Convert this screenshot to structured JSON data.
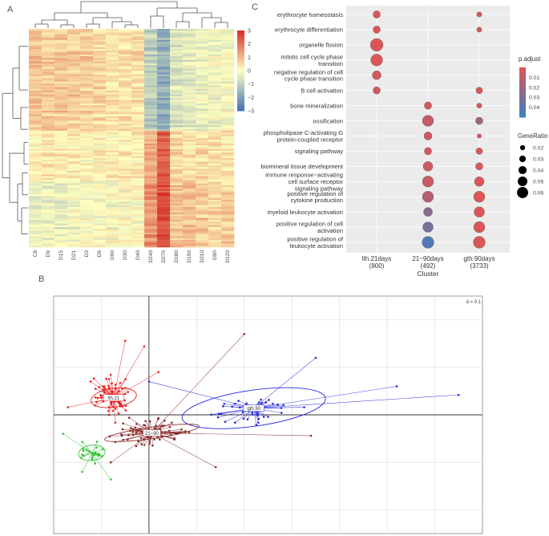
{
  "panels": {
    "a": "A",
    "b": "B",
    "c": "C"
  },
  "chart_data": [
    {
      "type": "heatmap",
      "panel": "A",
      "columns": [
        "C8",
        "D9",
        "D15",
        "D21",
        "D3",
        "D6",
        "D60",
        "D30",
        "D40",
        "D240",
        "D270",
        "D180",
        "D150",
        "D210",
        "D90",
        "D120"
      ],
      "colorbar": {
        "ticks": [
          3,
          2,
          1,
          0,
          -1,
          -2,
          -3
        ],
        "tick_labels": [
          "3",
          "2",
          "1",
          "0",
          "−1",
          "−2",
          "−3"
        ],
        "range": [
          -3,
          3
        ],
        "colors": {
          "high": "#d73027",
          "mid": "#ffffbf",
          "low": "#4575b4"
        }
      },
      "row_count": 120,
      "row_groups": [
        {
          "name": "cluster-1",
          "fraction": 0.47,
          "baseline": [
            0.9,
            0.8,
            0.8,
            0.7,
            0.7,
            0.6,
            0.4,
            0.5,
            0.4,
            -1.1,
            -1.7,
            -0.6,
            -0.5,
            -0.3,
            -0.2,
            -0.1
          ]
        },
        {
          "name": "cluster-2",
          "fraction": 0.23,
          "baseline": [
            0.2,
            0.3,
            0.3,
            0.3,
            0.2,
            0.3,
            0.2,
            0.3,
            0.3,
            1.2,
            2.3,
            0.5,
            0.4,
            0.5,
            0.4,
            0.4
          ]
        },
        {
          "name": "cluster-3",
          "fraction": 0.3,
          "baseline": [
            -0.4,
            -0.3,
            -0.3,
            -0.2,
            -0.2,
            -0.1,
            -0.1,
            0.0,
            0.0,
            1.6,
            2.6,
            0.8,
            0.9,
            0.7,
            0.6,
            0.7
          ]
        }
      ]
    },
    {
      "type": "scatter",
      "panel": "C",
      "title": "",
      "xlabel": "Cluster",
      "ylabel": "",
      "x_categories": [
        {
          "line1": "lth.21days",
          "line2": "(800)"
        },
        {
          "line1": "21~90days",
          "line2": "(492)"
        },
        {
          "line1": "gth.90days",
          "line2": "(3733)"
        }
      ],
      "y_terms": [
        [
          "erythrocyte homeostasis"
        ],
        [
          "erythrocyte differentiation"
        ],
        [
          "organelle fission"
        ],
        [
          "mitotic cell cycle phase",
          "transition"
        ],
        [
          "negative regulation of cell",
          "cycle phase transition"
        ],
        [
          "B cell activation"
        ],
        [
          "bone mineralization"
        ],
        [
          "ossification"
        ],
        [
          "phospholipase C-activating G",
          "protein-coupled receptor"
        ],
        [
          "signaling pathway"
        ],
        [
          "biomineral tissue development"
        ],
        [
          "immune response−activating",
          "cell surface receptor",
          "signaling pathway"
        ],
        [
          "positive regulation of",
          "cytokine production"
        ],
        [
          "myeloid leukocyte activation"
        ],
        [
          "positive regulation of cell",
          "activation"
        ],
        [
          "positive regulation of",
          "leukocyte activation"
        ]
      ],
      "points": [
        {
          "x": 0,
          "y": 0,
          "gene_ratio": 0.035,
          "p_adjust": 0.002
        },
        {
          "x": 0,
          "y": 1,
          "gene_ratio": 0.035,
          "p_adjust": 0.002
        },
        {
          "x": 0,
          "y": 2,
          "gene_ratio": 0.07,
          "p_adjust": 0.001
        },
        {
          "x": 0,
          "y": 3,
          "gene_ratio": 0.065,
          "p_adjust": 0.001
        },
        {
          "x": 0,
          "y": 4,
          "gene_ratio": 0.045,
          "p_adjust": 0.003
        },
        {
          "x": 0,
          "y": 5,
          "gene_ratio": 0.035,
          "p_adjust": 0.004
        },
        {
          "x": 2,
          "y": 0,
          "gene_ratio": 0.02,
          "p_adjust": 0.002
        },
        {
          "x": 2,
          "y": 1,
          "gene_ratio": 0.02,
          "p_adjust": 0.002
        },
        {
          "x": 2,
          "y": 5,
          "gene_ratio": 0.03,
          "p_adjust": 0.001
        },
        {
          "x": 1,
          "y": 6,
          "gene_ratio": 0.035,
          "p_adjust": 0.005
        },
        {
          "x": 2,
          "y": 6,
          "gene_ratio": 0.02,
          "p_adjust": 0.002
        },
        {
          "x": 1,
          "y": 7,
          "gene_ratio": 0.06,
          "p_adjust": 0.008
        },
        {
          "x": 2,
          "y": 7,
          "gene_ratio": 0.035,
          "p_adjust": 0.02
        },
        {
          "x": 1,
          "y": 8,
          "gene_ratio": 0.04,
          "p_adjust": 0.004
        },
        {
          "x": 2,
          "y": 8,
          "gene_ratio": 0.015,
          "p_adjust": 0.002
        },
        {
          "x": 1,
          "y": 9,
          "gene_ratio": 0.035,
          "p_adjust": 0.004
        },
        {
          "x": 2,
          "y": 9,
          "gene_ratio": 0.03,
          "p_adjust": 0.002
        },
        {
          "x": 1,
          "y": 10,
          "gene_ratio": 0.05,
          "p_adjust": 0.006
        },
        {
          "x": 2,
          "y": 10,
          "gene_ratio": 0.035,
          "p_adjust": 0.002
        },
        {
          "x": 1,
          "y": 11,
          "gene_ratio": 0.06,
          "p_adjust": 0.007
        },
        {
          "x": 2,
          "y": 11,
          "gene_ratio": 0.05,
          "p_adjust": 0.001
        },
        {
          "x": 1,
          "y": 12,
          "gene_ratio": 0.06,
          "p_adjust": 0.012
        },
        {
          "x": 2,
          "y": 12,
          "gene_ratio": 0.06,
          "p_adjust": 0.001
        },
        {
          "x": 1,
          "y": 13,
          "gene_ratio": 0.045,
          "p_adjust": 0.026
        },
        {
          "x": 2,
          "y": 13,
          "gene_ratio": 0.055,
          "p_adjust": 0.002
        },
        {
          "x": 1,
          "y": 14,
          "gene_ratio": 0.055,
          "p_adjust": 0.032
        },
        {
          "x": 2,
          "y": 14,
          "gene_ratio": 0.06,
          "p_adjust": 0.001
        },
        {
          "x": 1,
          "y": 15,
          "gene_ratio": 0.065,
          "p_adjust": 0.044
        },
        {
          "x": 2,
          "y": 15,
          "gene_ratio": 0.065,
          "p_adjust": 0.002
        }
      ],
      "legend_padjust": {
        "title": "p.adjust",
        "ticks": [
          0.01,
          0.02,
          0.03,
          0.04
        ],
        "tick_labels": [
          "0.01",
          "0.02",
          "0.03",
          "0.04"
        ],
        "range": [
          0,
          0.05
        ],
        "colors": {
          "low": "#e05555",
          "high": "#3b7fc4"
        }
      },
      "legend_generatio": {
        "title": "GeneRatio",
        "values": [
          0.02,
          0.03,
          0.04,
          0.05,
          0.06
        ],
        "labels": [
          "0.02",
          "0.03",
          "0.04",
          "0.05",
          "0.06"
        ]
      }
    },
    {
      "type": "scatter",
      "panel": "B",
      "subtype": "star-plot",
      "scale_label": "d = 0.1",
      "xlim": [
        -1.0,
        3.5
      ],
      "ylim": [
        -1.25,
        1.25
      ],
      "grid": true,
      "groups": [
        {
          "name": "lth.21",
          "label": "lth.21",
          "color": "#e62020",
          "centroid": [
            -0.37,
            0.18
          ],
          "ellipse": {
            "rx": 0.24,
            "ry": 0.1
          },
          "seed": 7,
          "count": 80,
          "spread": [
            0.22,
            0.22
          ],
          "tail": [
            [
              -0.85,
              0.08
            ],
            [
              -0.25,
              0.78
            ],
            [
              -0.05,
              0.72
            ],
            [
              0.1,
              0.45
            ]
          ]
        },
        {
          "name": "gth.90",
          "label": "gth.90",
          "color": "#2424e0",
          "centroid": [
            1.1,
            0.07
          ],
          "ellipse": {
            "rx": 0.76,
            "ry": 0.19
          },
          "seed": 21,
          "count": 40,
          "spread": [
            0.45,
            0.18
          ],
          "tail": [
            [
              3.25,
              0.21
            ],
            [
              2.6,
              0.3
            ],
            [
              1.75,
              0.6
            ],
            [
              0.0,
              0.35
            ]
          ]
        },
        {
          "name": "21~90",
          "label": "21~90",
          "color": "#8b2a2a",
          "centroid": [
            0.03,
            -0.19
          ],
          "ellipse": {
            "rx": 0.5,
            "ry": 0.06
          },
          "seed": 33,
          "count": 80,
          "spread": [
            0.38,
            0.16
          ],
          "tail": [
            [
              1.0,
              0.85
            ],
            [
              0.7,
              -0.55
            ],
            [
              -0.4,
              -0.5
            ],
            [
              1.7,
              -0.22
            ]
          ]
        },
        {
          "name": "early",
          "label": "",
          "color": "#36c236",
          "centroid": [
            -0.6,
            -0.4
          ],
          "ellipse": {
            "rx": 0.14,
            "ry": 0.08
          },
          "seed": 47,
          "count": 22,
          "spread": [
            0.14,
            0.12
          ],
          "tail": [
            [
              -0.9,
              -0.2
            ],
            [
              -0.4,
              -0.68
            ],
            [
              -0.7,
              -0.6
            ]
          ]
        }
      ]
    }
  ]
}
